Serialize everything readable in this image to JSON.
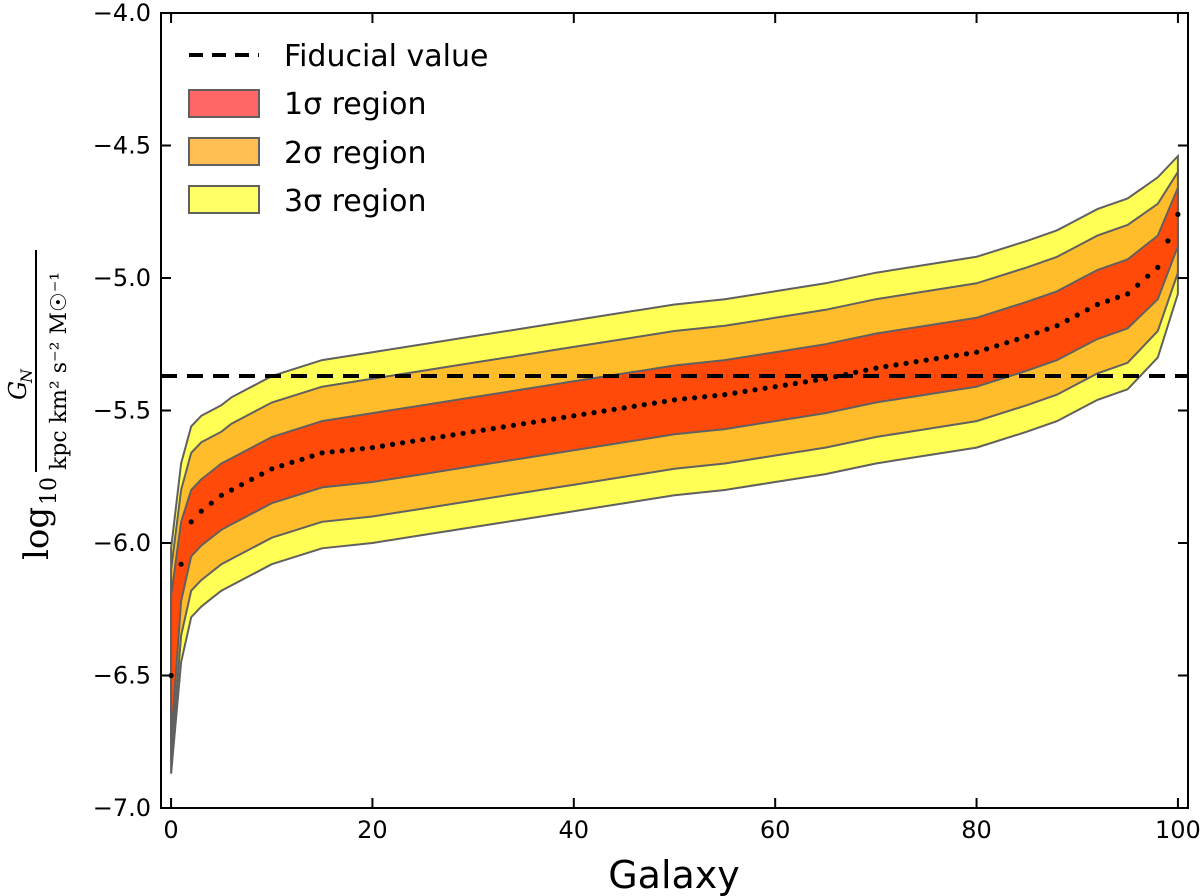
{
  "chart_data": {
    "type": "area",
    "xlabel": "Galaxy",
    "ylabel": {
      "prefix": "log",
      "sub": "10",
      "numerator": "G",
      "numerator_sub": "N",
      "denominator": "kpc km² s⁻² M☉⁻¹"
    },
    "xlim": [
      -1,
      101
    ],
    "ylim": [
      -7.0,
      -4.0
    ],
    "xticks": [
      "0",
      "20",
      "40",
      "60",
      "80",
      "100"
    ],
    "yticks": [
      "−7.0",
      "−6.5",
      "−6.0",
      "−5.5",
      "−5.0",
      "−4.5",
      "−4.0"
    ],
    "grid": false,
    "legend_position": "top-left",
    "legend": [
      {
        "label": "Fiducial value",
        "kind": "dashed-line",
        "color": "#000000"
      },
      {
        "label": "1σ region",
        "kind": "patch",
        "color": "#ff6666"
      },
      {
        "label": "2σ region",
        "kind": "patch",
        "color": "#ffbf55"
      },
      {
        "label": "3σ region",
        "kind": "patch",
        "color": "#ffff66"
      }
    ],
    "colors": {
      "band1": "#ff4a0a",
      "band2": "#ffbd2c",
      "band3": "#ffff55",
      "edge": "#606060"
    },
    "fiducial_value": -5.37,
    "series": [
      {
        "name": "median",
        "style": "dotted",
        "x": [
          0,
          1,
          2,
          3,
          4,
          5,
          6,
          10,
          15,
          20,
          25,
          30,
          35,
          40,
          45,
          50,
          55,
          60,
          65,
          70,
          75,
          80,
          85,
          88,
          90,
          92,
          95,
          98,
          100
        ],
        "y": [
          -6.5,
          -6.08,
          -5.92,
          -5.88,
          -5.85,
          -5.82,
          -5.8,
          -5.72,
          -5.66,
          -5.64,
          -5.61,
          -5.58,
          -5.55,
          -5.52,
          -5.49,
          -5.46,
          -5.44,
          -5.41,
          -5.38,
          -5.34,
          -5.31,
          -5.28,
          -5.22,
          -5.18,
          -5.14,
          -5.1,
          -5.06,
          -4.96,
          -4.76
        ]
      }
    ],
    "bands": {
      "x": [
        0,
        1,
        2,
        3,
        4,
        5,
        6,
        10,
        15,
        20,
        25,
        30,
        35,
        40,
        45,
        50,
        55,
        60,
        65,
        70,
        75,
        80,
        85,
        88,
        90,
        92,
        95,
        98,
        100
      ],
      "sigma1_upper": [
        -6.2,
        -5.92,
        -5.8,
        -5.76,
        -5.73,
        -5.7,
        -5.68,
        -5.6,
        -5.54,
        -5.51,
        -5.48,
        -5.45,
        -5.42,
        -5.39,
        -5.36,
        -5.33,
        -5.31,
        -5.28,
        -5.25,
        -5.21,
        -5.18,
        -5.15,
        -5.09,
        -5.05,
        -5.01,
        -4.97,
        -4.93,
        -4.84,
        -4.66
      ],
      "sigma1_lower": [
        -6.75,
        -6.22,
        -6.05,
        -6.01,
        -5.98,
        -5.95,
        -5.93,
        -5.85,
        -5.79,
        -5.77,
        -5.74,
        -5.71,
        -5.68,
        -5.65,
        -5.62,
        -5.59,
        -5.57,
        -5.54,
        -5.51,
        -5.47,
        -5.44,
        -5.41,
        -5.35,
        -5.31,
        -5.27,
        -5.23,
        -5.19,
        -5.08,
        -4.88
      ],
      "sigma2_upper": [
        -6.1,
        -5.8,
        -5.66,
        -5.62,
        -5.6,
        -5.58,
        -5.55,
        -5.47,
        -5.41,
        -5.38,
        -5.35,
        -5.32,
        -5.29,
        -5.26,
        -5.23,
        -5.2,
        -5.18,
        -5.15,
        -5.12,
        -5.08,
        -5.05,
        -5.02,
        -4.96,
        -4.92,
        -4.88,
        -4.84,
        -4.8,
        -4.72,
        -4.6
      ],
      "sigma2_lower": [
        -6.82,
        -6.35,
        -6.18,
        -6.14,
        -6.11,
        -6.08,
        -6.06,
        -5.98,
        -5.92,
        -5.9,
        -5.87,
        -5.84,
        -5.81,
        -5.78,
        -5.75,
        -5.72,
        -5.7,
        -5.67,
        -5.64,
        -5.6,
        -5.57,
        -5.54,
        -5.48,
        -5.44,
        -5.4,
        -5.36,
        -5.32,
        -5.2,
        -4.98
      ],
      "sigma3_upper": [
        -6.02,
        -5.7,
        -5.56,
        -5.52,
        -5.5,
        -5.48,
        -5.45,
        -5.37,
        -5.31,
        -5.28,
        -5.25,
        -5.22,
        -5.19,
        -5.16,
        -5.13,
        -5.1,
        -5.08,
        -5.05,
        -5.02,
        -4.98,
        -4.95,
        -4.92,
        -4.86,
        -4.82,
        -4.78,
        -4.74,
        -4.7,
        -4.62,
        -4.54
      ],
      "sigma3_lower": [
        -6.87,
        -6.45,
        -6.28,
        -6.24,
        -6.21,
        -6.18,
        -6.16,
        -6.08,
        -6.02,
        -6.0,
        -5.97,
        -5.94,
        -5.91,
        -5.88,
        -5.85,
        -5.82,
        -5.8,
        -5.77,
        -5.74,
        -5.7,
        -5.67,
        -5.64,
        -5.58,
        -5.54,
        -5.5,
        -5.46,
        -5.42,
        -5.3,
        -5.06
      ]
    }
  }
}
